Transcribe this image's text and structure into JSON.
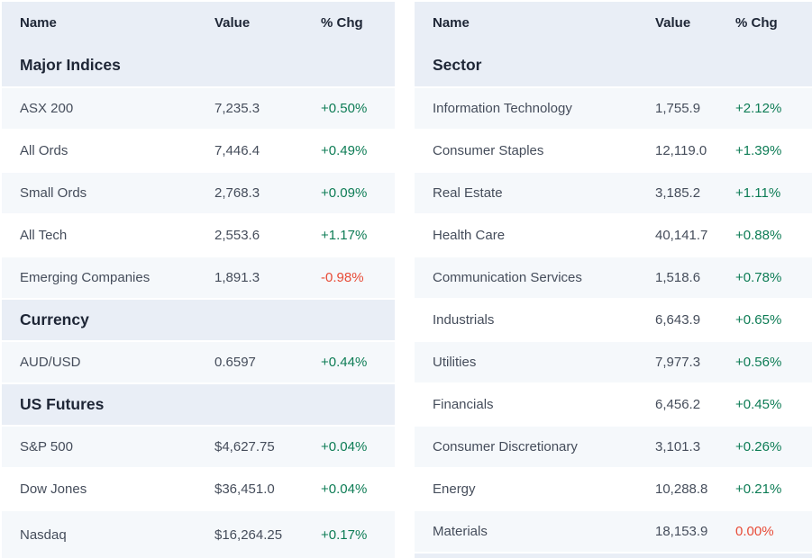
{
  "colors": {
    "positive_change": "#0d7c55",
    "negative_change": "#e84b37",
    "section_header_bg": "#e9eef6",
    "row_tint_bg": "#f5f8fb",
    "heading_text": "#1e2636",
    "body_text": "#454d5b"
  },
  "left_table": {
    "headers": {
      "name": "Name",
      "value": "Value",
      "chg": "% Chg"
    },
    "sections": [
      {
        "title": "Major Indices",
        "rows": [
          {
            "name": "ASX 200",
            "value": "7,235.3",
            "chg": "+0.50%",
            "trend": "up"
          },
          {
            "name": "All Ords",
            "value": "7,446.4",
            "chg": "+0.49%",
            "trend": "up"
          },
          {
            "name": "Small Ords",
            "value": "2,768.3",
            "chg": "+0.09%",
            "trend": "up"
          },
          {
            "name": "All Tech",
            "value": "2,553.6",
            "chg": "+1.17%",
            "trend": "up"
          },
          {
            "name": "Emerging Companies",
            "value": "1,891.3",
            "chg": "-0.98%",
            "trend": "down"
          }
        ]
      },
      {
        "title": "Currency",
        "rows": [
          {
            "name": "AUD/USD",
            "value": "0.6597",
            "chg": "+0.44%",
            "trend": "up"
          }
        ]
      },
      {
        "title": "US Futures",
        "rows": [
          {
            "name": "S&P 500",
            "value": "$4,627.75",
            "chg": "+0.04%",
            "trend": "up"
          },
          {
            "name": "Dow Jones",
            "value": "$36,451.0",
            "chg": "+0.04%",
            "trend": "up"
          },
          {
            "name": "Nasdaq",
            "value": "$16,264.25",
            "chg": "+0.17%",
            "trend": "up"
          }
        ]
      }
    ]
  },
  "right_table": {
    "headers": {
      "name": "Name",
      "value": "Value",
      "chg": "% Chg"
    },
    "sections": [
      {
        "title": "Sector",
        "rows": [
          {
            "name": "Information Technology",
            "value": "1,755.9",
            "chg": "+2.12%",
            "trend": "up"
          },
          {
            "name": "Consumer Staples",
            "value": "12,119.0",
            "chg": "+1.39%",
            "trend": "up"
          },
          {
            "name": "Real Estate",
            "value": "3,185.2",
            "chg": "+1.11%",
            "trend": "up"
          },
          {
            "name": "Health Care",
            "value": "40,141.7",
            "chg": "+0.88%",
            "trend": "up"
          },
          {
            "name": "Communication Services",
            "value": "1,518.6",
            "chg": "+0.78%",
            "trend": "up"
          },
          {
            "name": "Industrials",
            "value": "6,643.9",
            "chg": "+0.65%",
            "trend": "up"
          },
          {
            "name": "Utilities",
            "value": "7,977.3",
            "chg": "+0.56%",
            "trend": "up"
          },
          {
            "name": "Financials",
            "value": "6,456.2",
            "chg": "+0.45%",
            "trend": "up"
          },
          {
            "name": "Consumer Discretionary",
            "value": "3,101.3",
            "chg": "+0.26%",
            "trend": "up"
          },
          {
            "name": "Energy",
            "value": "10,288.8",
            "chg": "+0.21%",
            "trend": "up"
          },
          {
            "name": "Materials",
            "value": "18,153.9",
            "chg": "0.00%",
            "trend": "down"
          }
        ]
      }
    ]
  }
}
